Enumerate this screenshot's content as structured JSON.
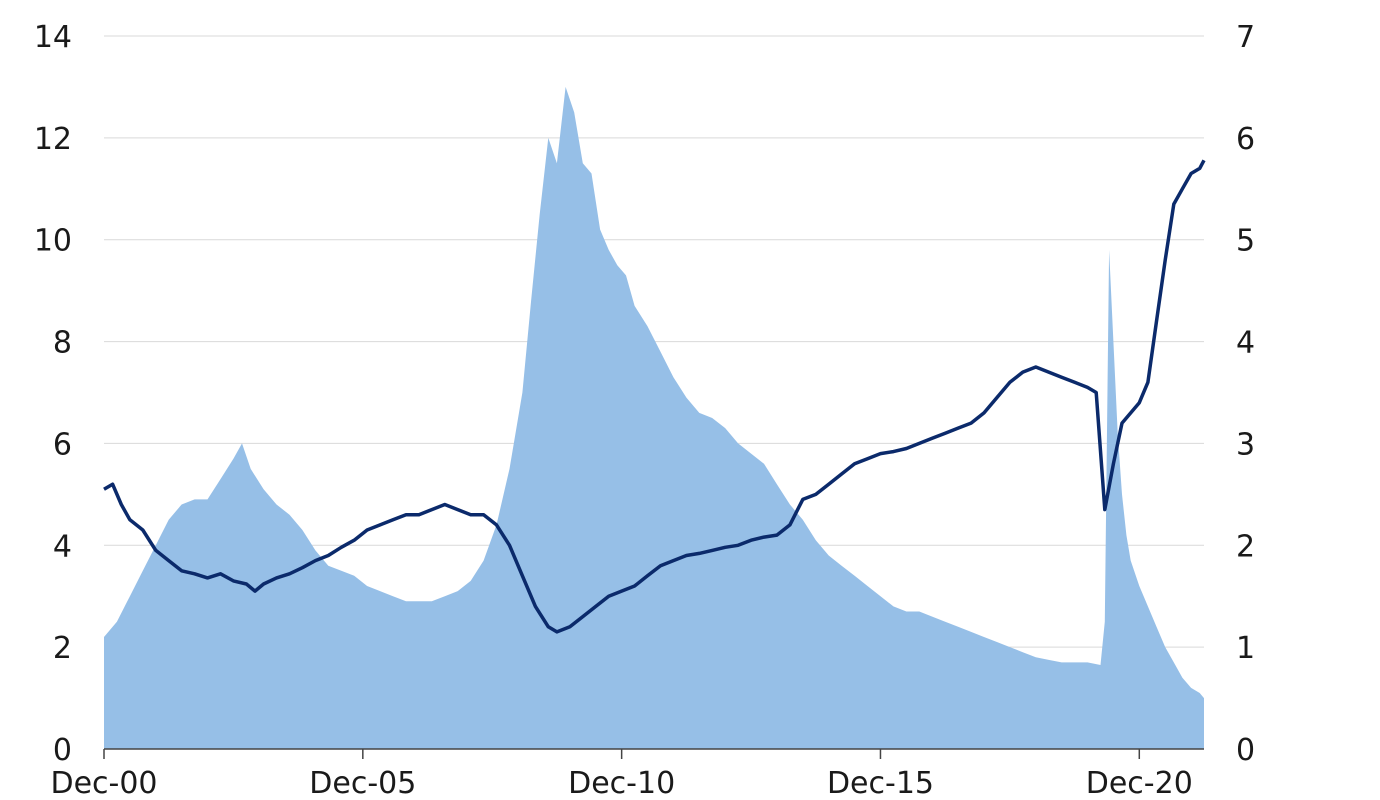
{
  "chart_data": {
    "type": "area+line",
    "x_tick_labels": [
      "Dec-00",
      "Dec-05",
      "Dec-10",
      "Dec-15",
      "Dec-20"
    ],
    "x_tick_dates": [
      "2000-12",
      "2005-12",
      "2010-12",
      "2015-12",
      "2020-12"
    ],
    "x_range": [
      "2000-12",
      "2022-03"
    ],
    "left_axis": {
      "ylim": [
        0,
        14
      ],
      "ticks": [
        0,
        2,
        4,
        6,
        8,
        10,
        12,
        14
      ]
    },
    "right_axis": {
      "ylim": [
        0,
        7
      ],
      "ticks": [
        0,
        1,
        2,
        3,
        4,
        5,
        6,
        7
      ]
    },
    "grid": true,
    "legend": "none",
    "series": [
      {
        "type": "area",
        "axis": "left",
        "color": "#96bfe7",
        "points": [
          [
            "2000-12",
            2.2
          ],
          [
            "2001-03",
            2.5
          ],
          [
            "2001-06",
            3.0
          ],
          [
            "2001-09",
            3.5
          ],
          [
            "2001-12",
            4.0
          ],
          [
            "2002-03",
            4.5
          ],
          [
            "2002-06",
            4.8
          ],
          [
            "2002-09",
            4.9
          ],
          [
            "2002-12",
            4.9
          ],
          [
            "2003-03",
            5.3
          ],
          [
            "2003-06",
            5.7
          ],
          [
            "2003-08",
            6.0
          ],
          [
            "2003-10",
            5.5
          ],
          [
            "2004-01",
            5.1
          ],
          [
            "2004-04",
            4.8
          ],
          [
            "2004-07",
            4.6
          ],
          [
            "2004-10",
            4.3
          ],
          [
            "2005-01",
            3.9
          ],
          [
            "2005-04",
            3.6
          ],
          [
            "2005-07",
            3.5
          ],
          [
            "2005-10",
            3.4
          ],
          [
            "2006-01",
            3.2
          ],
          [
            "2006-04",
            3.1
          ],
          [
            "2006-07",
            3.0
          ],
          [
            "2006-10",
            2.9
          ],
          [
            "2007-01",
            2.9
          ],
          [
            "2007-04",
            2.9
          ],
          [
            "2007-07",
            3.0
          ],
          [
            "2007-10",
            3.1
          ],
          [
            "2008-01",
            3.3
          ],
          [
            "2008-04",
            3.7
          ],
          [
            "2008-07",
            4.4
          ],
          [
            "2008-10",
            5.5
          ],
          [
            "2009-01",
            7.0
          ],
          [
            "2009-03",
            8.8
          ],
          [
            "2009-05",
            10.5
          ],
          [
            "2009-07",
            12.0
          ],
          [
            "2009-09",
            11.5
          ],
          [
            "2009-11",
            13.0
          ],
          [
            "2010-01",
            12.5
          ],
          [
            "2010-03",
            11.5
          ],
          [
            "2010-05",
            11.3
          ],
          [
            "2010-07",
            10.2
          ],
          [
            "2010-09",
            9.8
          ],
          [
            "2010-11",
            9.5
          ],
          [
            "2011-01",
            9.3
          ],
          [
            "2011-03",
            8.7
          ],
          [
            "2011-06",
            8.3
          ],
          [
            "2011-09",
            7.8
          ],
          [
            "2011-12",
            7.3
          ],
          [
            "2012-03",
            6.9
          ],
          [
            "2012-06",
            6.6
          ],
          [
            "2012-09",
            6.5
          ],
          [
            "2012-12",
            6.3
          ],
          [
            "2013-03",
            6.0
          ],
          [
            "2013-06",
            5.8
          ],
          [
            "2013-09",
            5.6
          ],
          [
            "2013-12",
            5.2
          ],
          [
            "2014-03",
            4.8
          ],
          [
            "2014-06",
            4.5
          ],
          [
            "2014-09",
            4.1
          ],
          [
            "2014-12",
            3.8
          ],
          [
            "2015-03",
            3.6
          ],
          [
            "2015-06",
            3.4
          ],
          [
            "2015-09",
            3.2
          ],
          [
            "2015-12",
            3.0
          ],
          [
            "2016-03",
            2.8
          ],
          [
            "2016-06",
            2.7
          ],
          [
            "2016-09",
            2.7
          ],
          [
            "2016-12",
            2.6
          ],
          [
            "2017-03",
            2.5
          ],
          [
            "2017-06",
            2.4
          ],
          [
            "2017-09",
            2.3
          ],
          [
            "2017-12",
            2.2
          ],
          [
            "2018-03",
            2.1
          ],
          [
            "2018-06",
            2.0
          ],
          [
            "2018-09",
            1.9
          ],
          [
            "2018-12",
            1.8
          ],
          [
            "2019-03",
            1.75
          ],
          [
            "2019-06",
            1.7
          ],
          [
            "2019-09",
            1.7
          ],
          [
            "2019-12",
            1.7
          ],
          [
            "2020-03",
            1.65
          ],
          [
            "2020-04",
            2.5
          ],
          [
            "2020-05",
            9.8
          ],
          [
            "2020-06",
            8.0
          ],
          [
            "2020-07",
            6.2
          ],
          [
            "2020-08",
            5.0
          ],
          [
            "2020-09",
            4.2
          ],
          [
            "2020-10",
            3.7
          ],
          [
            "2020-12",
            3.2
          ],
          [
            "2021-02",
            2.8
          ],
          [
            "2021-04",
            2.4
          ],
          [
            "2021-06",
            2.0
          ],
          [
            "2021-08",
            1.7
          ],
          [
            "2021-10",
            1.4
          ],
          [
            "2021-12",
            1.2
          ],
          [
            "2022-02",
            1.1
          ],
          [
            "2022-03",
            1.0
          ]
        ]
      },
      {
        "type": "line",
        "axis": "right",
        "color": "#0b2a6b",
        "points": [
          [
            "2000-12",
            2.55
          ],
          [
            "2001-02",
            2.6
          ],
          [
            "2001-04",
            2.4
          ],
          [
            "2001-06",
            2.25
          ],
          [
            "2001-09",
            2.15
          ],
          [
            "2001-12",
            1.95
          ],
          [
            "2002-03",
            1.85
          ],
          [
            "2002-06",
            1.75
          ],
          [
            "2002-09",
            1.72
          ],
          [
            "2002-12",
            1.68
          ],
          [
            "2003-03",
            1.72
          ],
          [
            "2003-06",
            1.65
          ],
          [
            "2003-09",
            1.62
          ],
          [
            "2003-11",
            1.55
          ],
          [
            "2004-01",
            1.62
          ],
          [
            "2004-04",
            1.68
          ],
          [
            "2004-07",
            1.72
          ],
          [
            "2004-10",
            1.78
          ],
          [
            "2005-01",
            1.85
          ],
          [
            "2005-04",
            1.9
          ],
          [
            "2005-07",
            1.98
          ],
          [
            "2005-10",
            2.05
          ],
          [
            "2006-01",
            2.15
          ],
          [
            "2006-04",
            2.2
          ],
          [
            "2006-07",
            2.25
          ],
          [
            "2006-10",
            2.3
          ],
          [
            "2007-01",
            2.3
          ],
          [
            "2007-04",
            2.35
          ],
          [
            "2007-07",
            2.4
          ],
          [
            "2007-10",
            2.35
          ],
          [
            "2008-01",
            2.3
          ],
          [
            "2008-04",
            2.3
          ],
          [
            "2008-07",
            2.2
          ],
          [
            "2008-10",
            2.0
          ],
          [
            "2009-01",
            1.7
          ],
          [
            "2009-04",
            1.4
          ],
          [
            "2009-07",
            1.2
          ],
          [
            "2009-09",
            1.15
          ],
          [
            "2009-12",
            1.2
          ],
          [
            "2010-03",
            1.3
          ],
          [
            "2010-06",
            1.4
          ],
          [
            "2010-09",
            1.5
          ],
          [
            "2010-12",
            1.55
          ],
          [
            "2011-03",
            1.6
          ],
          [
            "2011-06",
            1.7
          ],
          [
            "2011-09",
            1.8
          ],
          [
            "2011-12",
            1.85
          ],
          [
            "2012-03",
            1.9
          ],
          [
            "2012-06",
            1.92
          ],
          [
            "2012-09",
            1.95
          ],
          [
            "2012-12",
            1.98
          ],
          [
            "2013-03",
            2.0
          ],
          [
            "2013-06",
            2.05
          ],
          [
            "2013-09",
            2.08
          ],
          [
            "2013-12",
            2.1
          ],
          [
            "2014-03",
            2.2
          ],
          [
            "2014-06",
            2.45
          ],
          [
            "2014-09",
            2.5
          ],
          [
            "2014-12",
            2.6
          ],
          [
            "2015-03",
            2.7
          ],
          [
            "2015-06",
            2.8
          ],
          [
            "2015-09",
            2.85
          ],
          [
            "2015-12",
            2.9
          ],
          [
            "2016-03",
            2.92
          ],
          [
            "2016-06",
            2.95
          ],
          [
            "2016-09",
            3.0
          ],
          [
            "2016-12",
            3.05
          ],
          [
            "2017-03",
            3.1
          ],
          [
            "2017-06",
            3.15
          ],
          [
            "2017-09",
            3.2
          ],
          [
            "2017-12",
            3.3
          ],
          [
            "2018-03",
            3.45
          ],
          [
            "2018-06",
            3.6
          ],
          [
            "2018-09",
            3.7
          ],
          [
            "2018-12",
            3.75
          ],
          [
            "2019-03",
            3.7
          ],
          [
            "2019-06",
            3.65
          ],
          [
            "2019-09",
            3.6
          ],
          [
            "2019-12",
            3.55
          ],
          [
            "2020-02",
            3.5
          ],
          [
            "2020-04",
            2.35
          ],
          [
            "2020-06",
            2.8
          ],
          [
            "2020-08",
            3.2
          ],
          [
            "2020-10",
            3.3
          ],
          [
            "2020-12",
            3.4
          ],
          [
            "2021-02",
            3.6
          ],
          [
            "2021-04",
            4.2
          ],
          [
            "2021-06",
            4.8
          ],
          [
            "2021-08",
            5.35
          ],
          [
            "2021-10",
            5.5
          ],
          [
            "2021-12",
            5.65
          ],
          [
            "2022-02",
            5.7
          ],
          [
            "2022-03",
            5.78
          ]
        ]
      }
    ]
  }
}
